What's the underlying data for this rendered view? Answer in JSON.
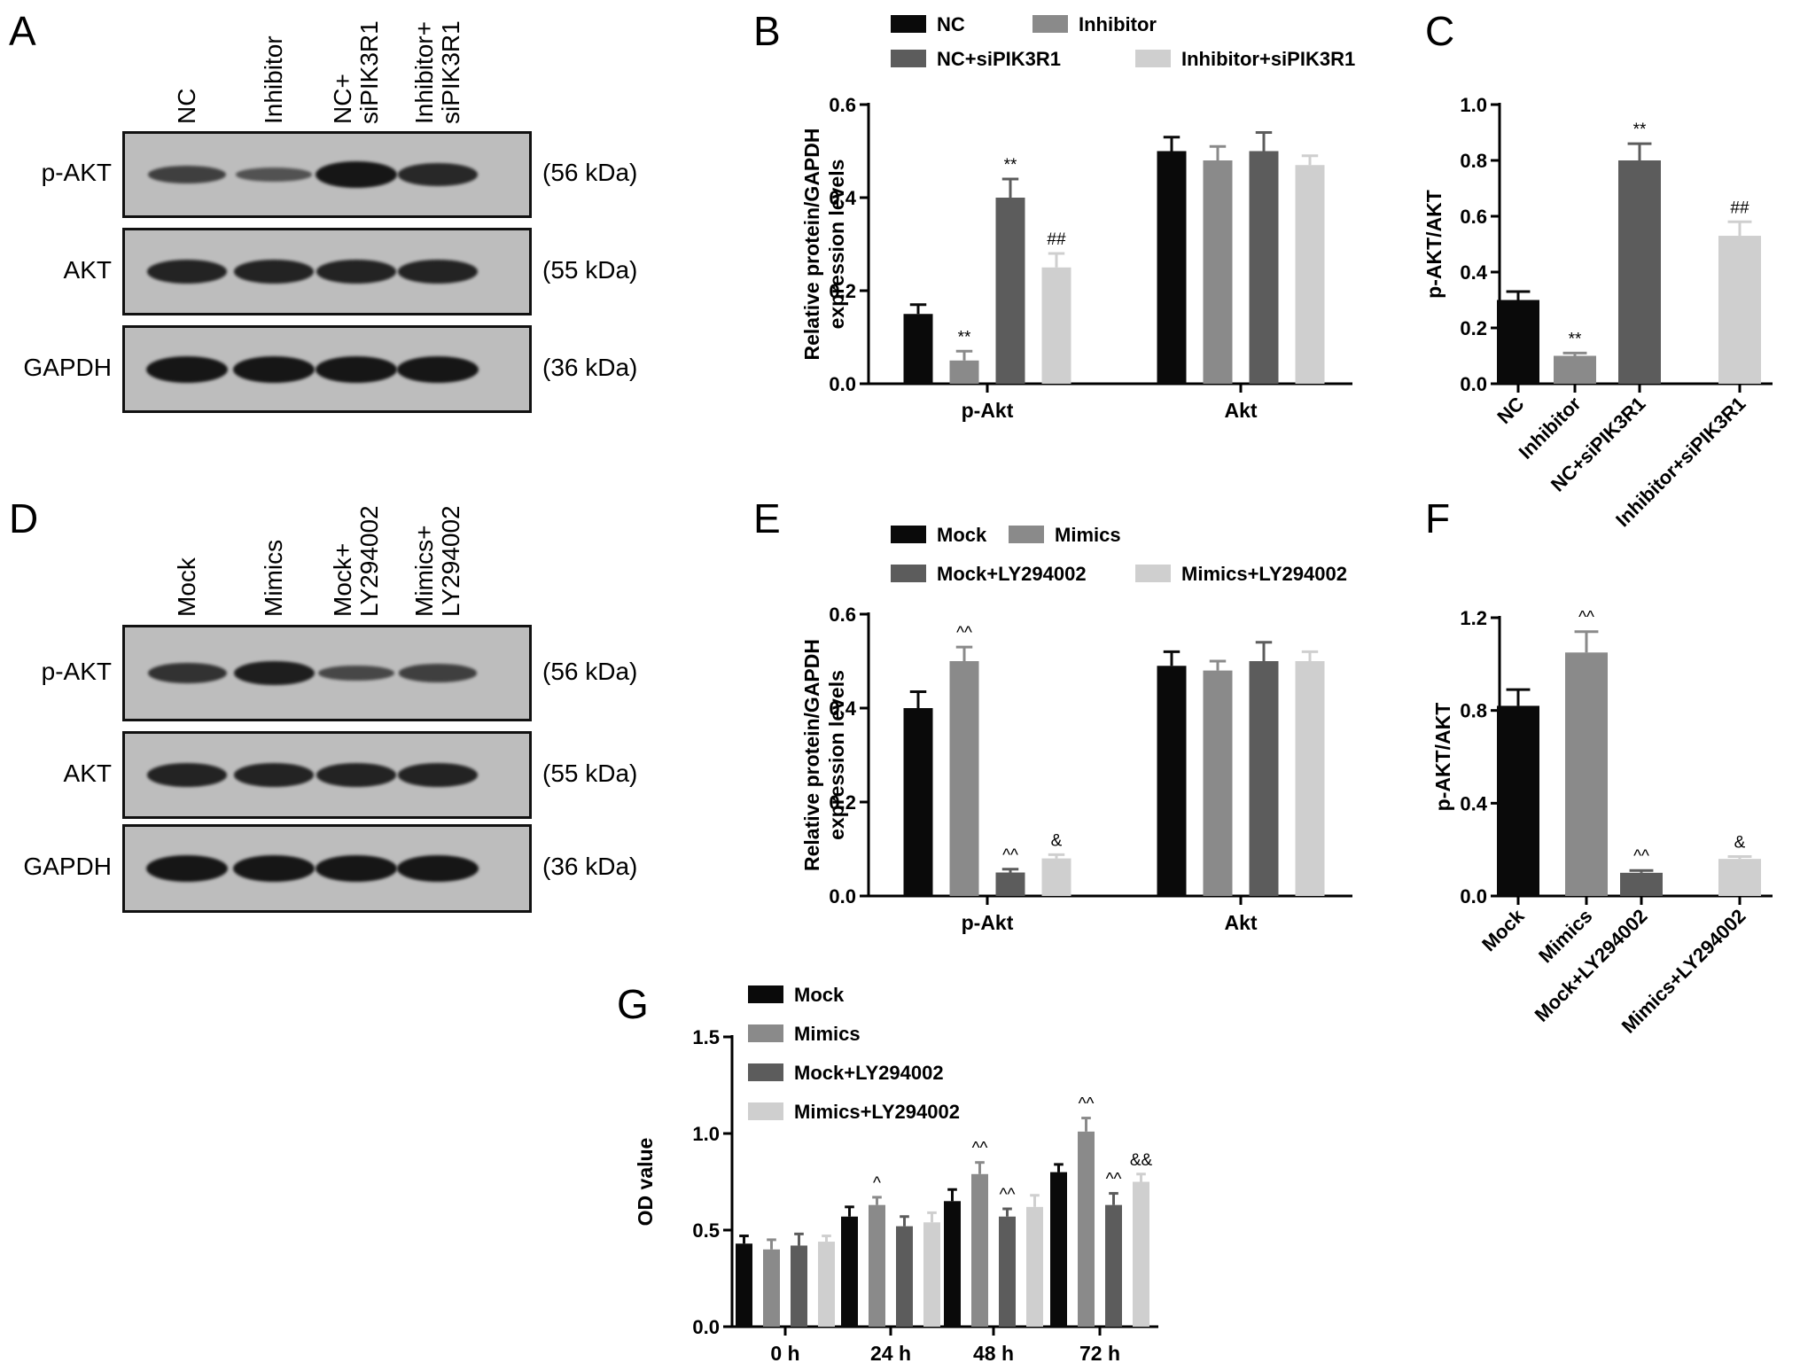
{
  "panel_letters": [
    "A",
    "B",
    "C",
    "D",
    "E",
    "F",
    "G"
  ],
  "blots": [
    {
      "panel": "A",
      "lanes": [
        [
          "NC"
        ],
        [
          "Inhibitor"
        ],
        [
          "NC+",
          "siPIK3R1"
        ],
        [
          "Inhibitor+",
          "siPIK3R1"
        ]
      ],
      "rows": [
        {
          "label": "p-AKT",
          "kda": "(56 kDa)",
          "intensity": [
            0.55,
            0.35,
            1.0,
            0.8
          ]
        },
        {
          "label": "AKT",
          "kda": "(55 kDa)",
          "intensity": [
            0.85,
            0.85,
            0.85,
            0.85
          ]
        },
        {
          "label": "GAPDH",
          "kda": "(36 kDa)",
          "intensity": [
            1.0,
            1.0,
            1.0,
            1.0
          ]
        }
      ]
    },
    {
      "panel": "D",
      "lanes": [
        [
          "Mock"
        ],
        [
          "Mimics"
        ],
        [
          "Mock+",
          "LY294002"
        ],
        [
          "Mimics+",
          "LY294002"
        ]
      ],
      "rows": [
        {
          "label": "p-AKT",
          "kda": "(56 kDa)",
          "intensity": [
            0.7,
            0.9,
            0.45,
            0.55
          ]
        },
        {
          "label": "AKT",
          "kda": "(55 kDa)",
          "intensity": [
            0.85,
            0.85,
            0.85,
            0.85
          ]
        },
        {
          "label": "GAPDH",
          "kda": "(36 kDa)",
          "intensity": [
            1.0,
            1.0,
            1.0,
            1.0
          ]
        }
      ]
    }
  ],
  "colors": {
    "black": "#0a0a0a",
    "mid_gray": "#8a8a8a",
    "dark_gray": "#5c5c5c",
    "light_gray": "#cfcfcf"
  },
  "chart_data": [
    {
      "panel": "B",
      "type": "bar",
      "categories": [
        "p-Akt",
        "Akt"
      ],
      "series": [
        {
          "name": "NC",
          "values": [
            0.15,
            0.5
          ],
          "errors": [
            0.02,
            0.03
          ],
          "annotations": [
            "",
            ""
          ]
        },
        {
          "name": "Inhibitor",
          "values": [
            0.05,
            0.48
          ],
          "errors": [
            0.02,
            0.03
          ],
          "annotations": [
            "**",
            ""
          ]
        },
        {
          "name": "NC+siPIK3R1",
          "values": [
            0.4,
            0.5
          ],
          "errors": [
            0.04,
            0.04
          ],
          "annotations": [
            "**",
            ""
          ]
        },
        {
          "name": "Inhibitor+siPIK3R1",
          "values": [
            0.25,
            0.47
          ],
          "errors": [
            0.03,
            0.02
          ],
          "annotations": [
            "##",
            ""
          ]
        }
      ],
      "ylabel": [
        "Relative protein/GAPDH",
        "expression levels"
      ],
      "ylim": [
        0,
        0.6
      ],
      "yticks": [
        "0.0",
        "0.2",
        "0.4",
        "0.6"
      ],
      "legend": "top, two rows"
    },
    {
      "panel": "C",
      "type": "bar",
      "categories": [
        "NC",
        "Inhibitor",
        "NC+siPIK3R1",
        "Inhibitor+siPIK3R1"
      ],
      "values": [
        0.3,
        0.1,
        0.8,
        0.53
      ],
      "errors": [
        0.03,
        0.01,
        0.06,
        0.05
      ],
      "annotations": [
        "",
        "**",
        "**",
        "##"
      ],
      "ylabel": "p-AKT/AKT",
      "ylim": [
        0,
        1.0
      ],
      "yticks": [
        "0.0",
        "0.2",
        "0.4",
        "0.6",
        "0.8",
        "1.0"
      ]
    },
    {
      "panel": "E",
      "type": "bar",
      "categories": [
        "p-Akt",
        "Akt"
      ],
      "series": [
        {
          "name": "Mock",
          "values": [
            0.4,
            0.49
          ],
          "errors": [
            0.035,
            0.03
          ],
          "annotations": [
            "",
            ""
          ]
        },
        {
          "name": "Mimics",
          "values": [
            0.5,
            0.48
          ],
          "errors": [
            0.03,
            0.02
          ],
          "annotations": [
            "^^",
            ""
          ]
        },
        {
          "name": "Mock+LY294002",
          "values": [
            0.05,
            0.5
          ],
          "errors": [
            0.007,
            0.04
          ],
          "annotations": [
            "^^",
            ""
          ]
        },
        {
          "name": "Mimics+LY294002",
          "values": [
            0.08,
            0.5
          ],
          "errors": [
            0.008,
            0.02
          ],
          "annotations": [
            "&",
            ""
          ]
        }
      ],
      "ylabel": [
        "Relative protein/GAPDH",
        "expression levels"
      ],
      "ylim": [
        0,
        0.6
      ],
      "yticks": [
        "0.0",
        "0.2",
        "0.4",
        "0.6"
      ],
      "legend": "top, two rows"
    },
    {
      "panel": "F",
      "type": "bar",
      "categories": [
        "Mock",
        "Mimics",
        "Mock+LY294002",
        "Mimics+LY294002"
      ],
      "values": [
        0.82,
        1.05,
        0.1,
        0.16
      ],
      "errors": [
        0.07,
        0.09,
        0.01,
        0.01
      ],
      "annotations": [
        "",
        "^^",
        "^^",
        "&"
      ],
      "ylabel": "p-AKT/AKT",
      "ylim": [
        0,
        1.2
      ],
      "yticks": [
        "0.0",
        "0.4",
        "0.8",
        "1.2"
      ]
    },
    {
      "panel": "G",
      "type": "bar",
      "categories": [
        "0 h",
        "24 h",
        "48 h",
        "72 h"
      ],
      "series": [
        {
          "name": "Mock",
          "values": [
            0.43,
            0.57,
            0.65,
            0.8
          ],
          "errors": [
            0.04,
            0.05,
            0.06,
            0.04
          ],
          "annotations": [
            "",
            "",
            "",
            ""
          ]
        },
        {
          "name": "Mimics",
          "values": [
            0.4,
            0.63,
            0.79,
            1.01
          ],
          "errors": [
            0.05,
            0.04,
            0.06,
            0.07
          ],
          "annotations": [
            "",
            "^",
            "^^",
            "^^"
          ]
        },
        {
          "name": "Mock+LY294002",
          "values": [
            0.42,
            0.52,
            0.57,
            0.63
          ],
          "errors": [
            0.06,
            0.05,
            0.04,
            0.06
          ],
          "annotations": [
            "",
            "",
            "^^",
            "^^"
          ]
        },
        {
          "name": "Mimics+LY294002",
          "values": [
            0.44,
            0.54,
            0.62,
            0.75
          ],
          "errors": [
            0.03,
            0.05,
            0.06,
            0.04
          ],
          "annotations": [
            "",
            "",
            "",
            "&&"
          ]
        }
      ],
      "ylabel": "OD value",
      "ylim": [
        0,
        1.5
      ],
      "yticks": [
        "0.0",
        "0.5",
        "1.0",
        "1.5"
      ],
      "legend": "top-left, stacked"
    }
  ]
}
